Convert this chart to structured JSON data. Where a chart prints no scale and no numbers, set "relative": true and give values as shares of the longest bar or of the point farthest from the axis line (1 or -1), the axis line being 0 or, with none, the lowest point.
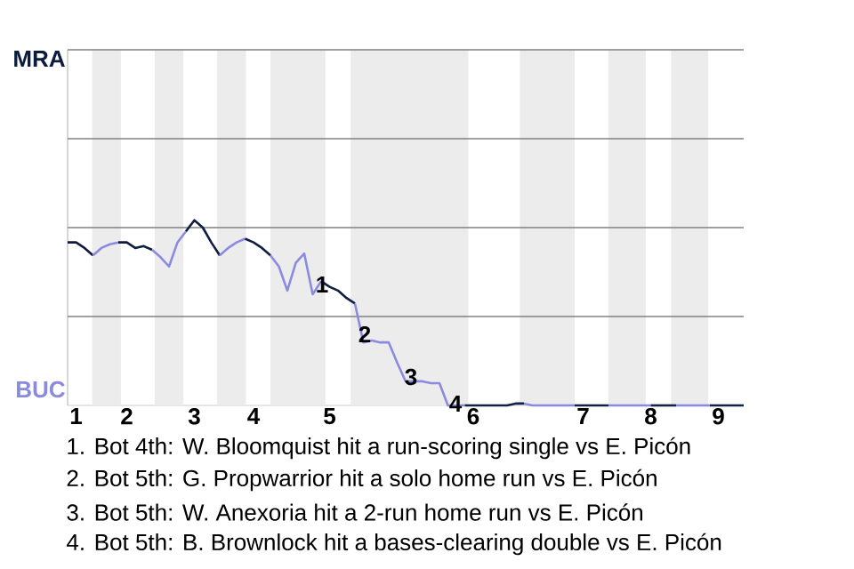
{
  "chart_data": {
    "type": "line",
    "relative": true,
    "categories": [
      null,
      "1",
      null,
      null,
      null,
      null,
      null,
      "2",
      null,
      null,
      null,
      null,
      null,
      null,
      null,
      "3",
      null,
      null,
      null,
      null,
      null,
      null,
      "4",
      null,
      null,
      null,
      null,
      null,
      null,
      null,
      null,
      "5",
      null,
      null,
      null,
      null,
      null,
      null,
      null,
      null,
      null,
      null,
      null,
      null,
      null,
      null,
      null,
      null,
      "6",
      null,
      null,
      null,
      null,
      null,
      null,
      null,
      null,
      null,
      null,
      null,
      null,
      "7",
      null,
      null,
      null,
      null,
      null,
      null,
      null,
      "8",
      null,
      null,
      null,
      null,
      null,
      null,
      null,
      "9",
      null,
      null,
      null
    ],
    "series": [
      {
        "color": "#0d1b3e",
        "values": [
          0.88,
          0.88,
          0.85,
          0.81,
          null,
          null,
          null,
          null,
          null,
          null,
          null,
          null,
          null,
          null,
          null,
          null,
          null,
          null,
          null,
          null,
          null,
          null,
          null,
          null,
          null,
          null,
          null,
          null,
          null,
          null,
          null,
          null,
          null,
          null,
          null,
          null,
          null,
          null,
          null,
          null,
          null,
          null,
          null,
          null,
          null,
          null,
          null,
          null,
          null,
          null,
          null,
          null,
          null,
          null,
          null,
          null,
          null,
          null,
          null,
          null,
          null,
          null,
          null,
          null,
          null,
          null,
          null,
          null,
          null,
          null,
          null,
          null,
          null,
          null,
          null,
          null,
          null,
          null,
          null,
          null,
          null
        ]
      },
      {
        "color": "#8a8ae0",
        "values": [
          null,
          null,
          null,
          0.81,
          0.85,
          0.87,
          0.88,
          null,
          null,
          null,
          null,
          null,
          null,
          null,
          null,
          null,
          null,
          null,
          null,
          null,
          null,
          null,
          null,
          null,
          null,
          null,
          null,
          null,
          null,
          null,
          null,
          null,
          null,
          null,
          null,
          null,
          null,
          null,
          null,
          null,
          null,
          null,
          null,
          null,
          null,
          null,
          null,
          null,
          null,
          null,
          null,
          null,
          null,
          null,
          null,
          null,
          null,
          null,
          null,
          null,
          null,
          null,
          null,
          null,
          null,
          null,
          null,
          null,
          null,
          null,
          null,
          null,
          null,
          null,
          null,
          null,
          null,
          null,
          null,
          null,
          null
        ]
      },
      {
        "color": "#0e1c3f",
        "values": [
          null,
          null,
          null,
          null,
          null,
          null,
          0.88,
          0.88,
          0.85,
          0.86,
          0.84,
          null,
          null,
          null,
          null,
          null,
          null,
          null,
          null,
          null,
          null,
          null,
          null,
          null,
          null,
          null,
          null,
          null,
          null,
          null,
          null,
          null,
          null,
          null,
          null,
          null,
          null,
          null,
          null,
          null,
          null,
          null,
          null,
          null,
          null,
          null,
          null,
          null,
          null,
          null,
          null,
          null,
          null,
          null,
          null,
          null,
          null,
          null,
          null,
          null,
          null,
          null,
          null,
          null,
          null,
          null,
          null,
          null,
          null,
          null,
          null,
          null,
          null,
          null,
          null,
          null,
          null,
          null,
          null,
          null,
          null
        ]
      },
      {
        "color": "#8a8ae0",
        "values": [
          null,
          null,
          null,
          null,
          null,
          null,
          null,
          null,
          null,
          null,
          0.84,
          0.8,
          0.75,
          0.88,
          0.94,
          null,
          null,
          null,
          null,
          null,
          null,
          null,
          null,
          null,
          null,
          null,
          null,
          null,
          null,
          null,
          null,
          null,
          null,
          null,
          null,
          null,
          null,
          null,
          null,
          null,
          null,
          null,
          null,
          null,
          null,
          null,
          null,
          null,
          null,
          null,
          null,
          null,
          null,
          null,
          null,
          null,
          null,
          null,
          null,
          null,
          null,
          null,
          null,
          null,
          null,
          null,
          null,
          null,
          null,
          null,
          null,
          null,
          null,
          null,
          null,
          null,
          null,
          null,
          null,
          null,
          null
        ]
      },
      {
        "color": "#0f1d40",
        "values": [
          null,
          null,
          null,
          null,
          null,
          null,
          null,
          null,
          null,
          null,
          null,
          null,
          null,
          null,
          0.94,
          1,
          0.96,
          0.88,
          0.81,
          null,
          null,
          null,
          null,
          null,
          null,
          null,
          null,
          null,
          null,
          null,
          null,
          null,
          null,
          null,
          null,
          null,
          null,
          null,
          null,
          null,
          null,
          null,
          null,
          null,
          null,
          null,
          null,
          null,
          null,
          null,
          null,
          null,
          null,
          null,
          null,
          null,
          null,
          null,
          null,
          null,
          null,
          null,
          null,
          null,
          null,
          null,
          null,
          null,
          null,
          null,
          null,
          null,
          null,
          null,
          null,
          null,
          null,
          null,
          null,
          null,
          null
        ]
      },
      {
        "color": "#8a8ae0",
        "values": [
          null,
          null,
          null,
          null,
          null,
          null,
          null,
          null,
          null,
          null,
          null,
          null,
          null,
          null,
          null,
          null,
          null,
          null,
          0.81,
          0.85,
          0.88,
          0.9,
          null,
          null,
          null,
          null,
          null,
          null,
          null,
          null,
          null,
          null,
          null,
          null,
          null,
          null,
          null,
          null,
          null,
          null,
          null,
          null,
          null,
          null,
          null,
          null,
          null,
          null,
          null,
          null,
          null,
          null,
          null,
          null,
          null,
          null,
          null,
          null,
          null,
          null,
          null,
          null,
          null,
          null,
          null,
          null,
          null,
          null,
          null,
          null,
          null,
          null,
          null,
          null,
          null,
          null,
          null,
          null,
          null,
          null,
          null
        ]
      },
      {
        "color": "#101e41",
        "values": [
          null,
          null,
          null,
          null,
          null,
          null,
          null,
          null,
          null,
          null,
          null,
          null,
          null,
          null,
          null,
          null,
          null,
          null,
          null,
          null,
          null,
          0.9,
          0.88,
          0.85,
          0.81,
          null,
          null,
          null,
          null,
          null,
          null,
          null,
          null,
          null,
          null,
          null,
          null,
          null,
          null,
          null,
          null,
          null,
          null,
          null,
          null,
          null,
          null,
          null,
          null,
          null,
          null,
          null,
          null,
          null,
          null,
          null,
          null,
          null,
          null,
          null,
          null,
          null,
          null,
          null,
          null,
          null,
          null,
          null,
          null,
          null,
          null,
          null,
          null,
          null,
          null,
          null,
          null,
          null,
          null,
          null,
          null
        ]
      },
      {
        "color": "#8a8ae0",
        "values": [
          null,
          null,
          null,
          null,
          null,
          null,
          null,
          null,
          null,
          null,
          null,
          null,
          null,
          null,
          null,
          null,
          null,
          null,
          null,
          null,
          null,
          null,
          null,
          null,
          0.81,
          0.75,
          0.62,
          0.77,
          0.82,
          0.6,
          0.67,
          null,
          null,
          null,
          null,
          null,
          null,
          null,
          null,
          null,
          null,
          null,
          null,
          null,
          null,
          null,
          null,
          null,
          null,
          null,
          null,
          null,
          null,
          null,
          null,
          null,
          null,
          null,
          null,
          null,
          null,
          null,
          null,
          null,
          null,
          null,
          null,
          null,
          null,
          null,
          null,
          null,
          null,
          null,
          null,
          null,
          null,
          null,
          null,
          null,
          null
        ]
      },
      {
        "color": "#111f42",
        "values": [
          null,
          null,
          null,
          null,
          null,
          null,
          null,
          null,
          null,
          null,
          null,
          null,
          null,
          null,
          null,
          null,
          null,
          null,
          null,
          null,
          null,
          null,
          null,
          null,
          null,
          null,
          null,
          null,
          null,
          null,
          0.67,
          0.64,
          0.62,
          0.58,
          0.55,
          null,
          null,
          null,
          null,
          null,
          null,
          null,
          null,
          null,
          null,
          null,
          null,
          null,
          null,
          null,
          null,
          null,
          null,
          null,
          null,
          null,
          null,
          null,
          null,
          null,
          null,
          null,
          null,
          null,
          null,
          null,
          null,
          null,
          null,
          null,
          null,
          null,
          null,
          null,
          null,
          null,
          null,
          null,
          null,
          null,
          null
        ]
      },
      {
        "color": "#8a8ae0",
        "values": [
          null,
          null,
          null,
          null,
          null,
          null,
          null,
          null,
          null,
          null,
          null,
          null,
          null,
          null,
          null,
          null,
          null,
          null,
          null,
          null,
          null,
          null,
          null,
          null,
          null,
          null,
          null,
          null,
          null,
          null,
          null,
          null,
          null,
          null,
          0.55,
          0.34,
          0.35,
          0.34,
          0.34,
          0.23,
          0.13,
          0.13,
          0.13,
          0.12,
          0.12,
          0,
          0,
          0,
          null,
          null,
          null,
          null,
          null,
          null,
          null,
          null,
          null,
          null,
          null,
          null,
          null,
          null,
          null,
          null,
          null,
          null,
          null,
          null,
          null,
          null,
          null,
          null,
          null,
          null,
          null,
          null,
          null,
          null,
          null,
          null,
          null
        ]
      },
      {
        "color": "#122043",
        "values": [
          null,
          null,
          null,
          null,
          null,
          null,
          null,
          null,
          null,
          null,
          null,
          null,
          null,
          null,
          null,
          null,
          null,
          null,
          null,
          null,
          null,
          null,
          null,
          null,
          null,
          null,
          null,
          null,
          null,
          null,
          null,
          null,
          null,
          null,
          null,
          null,
          null,
          null,
          null,
          null,
          null,
          null,
          null,
          null,
          null,
          null,
          null,
          0,
          0,
          0,
          0,
          0,
          0,
          0.01,
          0.01,
          null,
          null,
          null,
          null,
          null,
          null,
          null,
          null,
          null,
          null,
          null,
          null,
          null,
          null,
          null,
          null,
          null,
          null,
          null,
          null,
          null,
          null,
          null,
          null,
          null,
          null
        ]
      },
      {
        "color": "#8a8ae0",
        "values": [
          null,
          null,
          null,
          null,
          null,
          null,
          null,
          null,
          null,
          null,
          null,
          null,
          null,
          null,
          null,
          null,
          null,
          null,
          null,
          null,
          null,
          null,
          null,
          null,
          null,
          null,
          null,
          null,
          null,
          null,
          null,
          null,
          null,
          null,
          null,
          null,
          null,
          null,
          null,
          null,
          null,
          null,
          null,
          null,
          null,
          null,
          null,
          null,
          null,
          null,
          null,
          null,
          null,
          null,
          0.01,
          0,
          0,
          0,
          0,
          0,
          0,
          null,
          null,
          null,
          null,
          null,
          null,
          null,
          null,
          null,
          null,
          null,
          null,
          null,
          null,
          null,
          null,
          null,
          null,
          null,
          null
        ]
      },
      {
        "color": "#132144",
        "values": [
          null,
          null,
          null,
          null,
          null,
          null,
          null,
          null,
          null,
          null,
          null,
          null,
          null,
          null,
          null,
          null,
          null,
          null,
          null,
          null,
          null,
          null,
          null,
          null,
          null,
          null,
          null,
          null,
          null,
          null,
          null,
          null,
          null,
          null,
          null,
          null,
          null,
          null,
          null,
          null,
          null,
          null,
          null,
          null,
          null,
          null,
          null,
          null,
          null,
          null,
          null,
          null,
          null,
          null,
          null,
          null,
          null,
          null,
          null,
          null,
          0,
          0,
          0,
          0,
          0,
          null,
          null,
          null,
          null,
          null,
          null,
          null,
          null,
          null,
          null,
          null,
          null,
          null,
          null,
          null,
          null
        ]
      },
      {
        "color": "#8a8ae0",
        "values": [
          null,
          null,
          null,
          null,
          null,
          null,
          null,
          null,
          null,
          null,
          null,
          null,
          null,
          null,
          null,
          null,
          null,
          null,
          null,
          null,
          null,
          null,
          null,
          null,
          null,
          null,
          null,
          null,
          null,
          null,
          null,
          null,
          null,
          null,
          null,
          null,
          null,
          null,
          null,
          null,
          null,
          null,
          null,
          null,
          null,
          null,
          null,
          null,
          null,
          null,
          null,
          null,
          null,
          null,
          null,
          null,
          null,
          null,
          null,
          null,
          null,
          null,
          null,
          null,
          0,
          0,
          0,
          0,
          0,
          0,
          null,
          null,
          null,
          null,
          null,
          null,
          null,
          null,
          null,
          null,
          null
        ]
      },
      {
        "color": "#142245",
        "values": [
          null,
          null,
          null,
          null,
          null,
          null,
          null,
          null,
          null,
          null,
          null,
          null,
          null,
          null,
          null,
          null,
          null,
          null,
          null,
          null,
          null,
          null,
          null,
          null,
          null,
          null,
          null,
          null,
          null,
          null,
          null,
          null,
          null,
          null,
          null,
          null,
          null,
          null,
          null,
          null,
          null,
          null,
          null,
          null,
          null,
          null,
          null,
          null,
          null,
          null,
          null,
          null,
          null,
          null,
          null,
          null,
          null,
          null,
          null,
          null,
          null,
          null,
          null,
          null,
          null,
          null,
          null,
          null,
          null,
          0,
          0,
          0,
          0,
          null,
          null,
          null,
          null,
          null,
          null,
          null,
          null
        ]
      },
      {
        "color": "#8a8ae0",
        "values": [
          null,
          null,
          null,
          null,
          null,
          null,
          null,
          null,
          null,
          null,
          null,
          null,
          null,
          null,
          null,
          null,
          null,
          null,
          null,
          null,
          null,
          null,
          null,
          null,
          null,
          null,
          null,
          null,
          null,
          null,
          null,
          null,
          null,
          null,
          null,
          null,
          null,
          null,
          null,
          null,
          null,
          null,
          null,
          null,
          null,
          null,
          null,
          null,
          null,
          null,
          null,
          null,
          null,
          null,
          null,
          null,
          null,
          null,
          null,
          null,
          null,
          null,
          null,
          null,
          null,
          null,
          null,
          null,
          null,
          null,
          null,
          null,
          0,
          0,
          0,
          0,
          0,
          null,
          null,
          null,
          null
        ]
      },
      {
        "color": "#152346",
        "values": [
          null,
          null,
          null,
          null,
          null,
          null,
          null,
          null,
          null,
          null,
          null,
          null,
          null,
          null,
          null,
          null,
          null,
          null,
          null,
          null,
          null,
          null,
          null,
          null,
          null,
          null,
          null,
          null,
          null,
          null,
          null,
          null,
          null,
          null,
          null,
          null,
          null,
          null,
          null,
          null,
          null,
          null,
          null,
          null,
          null,
          null,
          null,
          null,
          null,
          null,
          null,
          null,
          null,
          null,
          null,
          null,
          null,
          null,
          null,
          null,
          null,
          null,
          null,
          null,
          null,
          null,
          null,
          null,
          null,
          null,
          null,
          null,
          null,
          null,
          null,
          null,
          0,
          0,
          0,
          0,
          0
        ]
      }
    ],
    "ref_lines": [
      {
        "axis": "y",
        "value": 0.48,
        "color": "#808080"
      },
      {
        "axis": "y",
        "value": 0.96,
        "color": "#808080"
      },
      {
        "axis": "y",
        "value": 1.44,
        "color": "#808080"
      },
      {
        "axis": "y",
        "value": 1.92,
        "color": "#808080"
      }
    ],
    "annotations": [
      "MRA",
      "BUC",
      "1",
      "2",
      "3",
      "4",
      "1. Bot 4th: W. Bloomquist hit a run-scoring single vs E. Picón",
      "2. Bot 5th: G. Propwarrior hit a solo home run vs E. Picón",
      "3. Bot 5th: W. Anexoria hit a 2-run home run vs E. Picón",
      "4. Bot 5th: B. Brownlock hit a bases-clearing double vs E. Picón"
    ]
  }
}
